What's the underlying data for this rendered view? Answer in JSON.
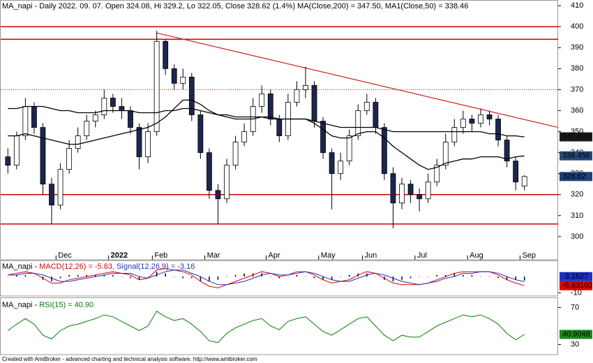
{
  "chart_data": [
    {
      "type": "candlestick",
      "title": "MA_napi - Daily 2022. 09. 07. Open 324.08, Hi 329.2, Lo 322.05, Close 328.62 (1.4%) MA(Close,200) = 347.50, MA1(Close,50) = 338.46",
      "categories": [
        null,
        null,
        null,
        null,
        null,
        null,
        "Dec",
        null,
        null,
        null,
        null,
        null,
        "2022",
        null,
        null,
        null,
        null,
        "Feb",
        null,
        null,
        null,
        null,
        null,
        "Mar",
        null,
        null,
        null,
        null,
        null,
        null,
        "Apr",
        null,
        null,
        null,
        null,
        null,
        "May",
        null,
        null,
        null,
        null,
        "Jun",
        null,
        null,
        null,
        null,
        null,
        "Jul",
        null,
        null,
        null,
        null,
        null,
        "Aug",
        null,
        null,
        null,
        null,
        null,
        "Sep"
      ],
      "bold_category": "2022",
      "open": [
        338,
        334,
        348,
        362,
        352,
        325,
        315,
        332,
        342,
        348,
        355,
        358,
        366,
        362,
        360,
        352,
        338,
        350,
        393,
        380,
        373,
        376,
        358,
        340,
        322,
        318,
        334,
        345,
        350,
        362,
        368,
        356,
        348,
        364,
        370,
        372,
        355,
        340,
        330,
        336,
        348,
        360,
        364,
        352,
        330,
        316,
        325,
        320,
        318,
        326,
        334,
        345,
        352,
        356,
        354,
        358,
        356,
        346,
        336,
        324.08
      ],
      "high": [
        342,
        350,
        366,
        364,
        354,
        328,
        335,
        346,
        352,
        358,
        360,
        370,
        368,
        366,
        362,
        354,
        354,
        398,
        394,
        382,
        380,
        378,
        360,
        342,
        325,
        337,
        348,
        354,
        366,
        372,
        370,
        358,
        368,
        374,
        381,
        374,
        357,
        342,
        340,
        351,
        363,
        368,
        366,
        354,
        333,
        328,
        327,
        323,
        330,
        337,
        349,
        356,
        360,
        358,
        361,
        360,
        358,
        348,
        338,
        329.2
      ],
      "low": [
        330,
        332,
        346,
        349,
        320,
        306,
        313,
        330,
        340,
        346,
        352,
        356,
        359,
        356,
        349,
        332,
        335,
        348,
        377,
        370,
        370,
        355,
        337,
        318,
        306,
        316,
        332,
        343,
        348,
        359,
        353,
        345,
        346,
        362,
        366,
        352,
        337,
        313,
        327,
        334,
        346,
        358,
        349,
        327,
        304,
        313,
        316,
        312,
        316,
        324,
        332,
        343,
        349,
        350,
        352,
        353,
        343,
        333,
        322,
        322.05
      ],
      "close": [
        334,
        348,
        362,
        352,
        325,
        315,
        332,
        342,
        348,
        355,
        358,
        366,
        362,
        360,
        352,
        338,
        350,
        393,
        380,
        373,
        376,
        358,
        340,
        322,
        318,
        334,
        345,
        350,
        362,
        368,
        356,
        348,
        364,
        370,
        372,
        355,
        340,
        330,
        336,
        348,
        360,
        364,
        352,
        330,
        316,
        325,
        320,
        318,
        326,
        334,
        345,
        352,
        356,
        354,
        358,
        356,
        346,
        336,
        326,
        328.62
      ],
      "up_color": "#ffffff",
      "down_color": "#1c2650",
      "close_box_color": "#1f3f77",
      "series": [
        {
          "color": "#000000",
          "box_color": "#1a1a1a",
          "last_value": 347.503,
          "values": [
            361,
            361,
            362,
            362,
            362,
            361,
            360,
            360,
            359,
            359,
            359,
            360,
            360,
            360,
            360,
            359,
            359,
            359,
            360,
            360,
            361,
            361,
            360,
            359,
            358,
            358,
            357,
            357,
            357,
            357,
            356,
            356,
            356,
            356,
            356,
            355,
            354,
            353,
            352,
            352,
            352,
            352,
            352,
            351,
            350,
            350,
            350,
            350,
            350,
            350,
            350,
            350,
            350,
            350,
            350,
            349,
            349,
            348,
            348,
            347.5
          ]
        },
        {
          "color": "#000000",
          "box_color": "#2a4878",
          "last_value": 338.456,
          "values": [
            348,
            348,
            349,
            348,
            347,
            346,
            345,
            344,
            344,
            345,
            346,
            347,
            348,
            349,
            350,
            351,
            352,
            354,
            357,
            361,
            365,
            365,
            363,
            360,
            358,
            357,
            356,
            356,
            356,
            357,
            357,
            356,
            356,
            356,
            356,
            354,
            351,
            348,
            347,
            347,
            349,
            350,
            350,
            347,
            343,
            340,
            337,
            334,
            332,
            333,
            335,
            336,
            337,
            337,
            338,
            338,
            338,
            337,
            338,
            338.46
          ]
        }
      ],
      "levels": [
        400,
        394,
        320,
        306
      ],
      "dotted_levels": [
        370
      ],
      "level_color": "#d00000",
      "trendline": [
        397,
        352
      ],
      "trendline_color": "#d02020",
      "ylim": [
        289,
        412.7
      ],
      "yticks": [
        300,
        310,
        320,
        330,
        340,
        350,
        360,
        370,
        380,
        390,
        400,
        410
      ]
    },
    {
      "type": "line",
      "title": "MA_napi - ",
      "series": [
        {
          "label": "MACD(12,26) = -5.63",
          "color": "#e00000",
          "last_value": -5.63102,
          "values": [
            1,
            2,
            3,
            2,
            -1,
            -4,
            -4,
            -2,
            -1,
            0,
            1,
            2,
            3,
            2,
            1,
            -2,
            -1,
            4,
            5,
            4,
            3,
            1,
            -3,
            -6,
            -7,
            -5,
            -3,
            -1,
            1,
            3,
            2,
            0,
            1,
            3,
            3,
            1,
            -2,
            -4,
            -3,
            -2,
            1,
            3,
            2,
            -1,
            -4,
            -5,
            -5,
            -5,
            -4,
            -2,
            0,
            2,
            3,
            3,
            3,
            3,
            1,
            -2,
            -4,
            -5.63
          ]
        },
        {
          "label": ", Signal(12,26,9) = -3.16",
          "color": "#2030c0",
          "last_value": -3.1627,
          "values": [
            1,
            1,
            2,
            2,
            1,
            -1,
            -3,
            -3,
            -2,
            -1,
            0,
            1,
            2,
            2,
            2,
            0,
            -1,
            1,
            3,
            4,
            4,
            2,
            0,
            -3,
            -5,
            -5,
            -4,
            -3,
            -1,
            1,
            2,
            1,
            1,
            2,
            3,
            2,
            0,
            -2,
            -3,
            -3,
            -1,
            1,
            2,
            1,
            -1,
            -3,
            -4,
            -5,
            -4,
            -3,
            -1,
            0,
            2,
            2,
            3,
            3,
            2,
            0,
            -2,
            -3.16
          ]
        }
      ],
      "histogram": [
        0,
        1,
        1,
        0,
        -2,
        -3,
        -1,
        1,
        1,
        1,
        1,
        1,
        1,
        0,
        -1,
        -2,
        0,
        3,
        2,
        0,
        -1,
        -1,
        -3,
        -3,
        -2,
        0,
        1,
        2,
        2,
        2,
        0,
        -1,
        0,
        1,
        0,
        -1,
        -2,
        -2,
        0,
        1,
        2,
        2,
        0,
        -2,
        -3,
        -2,
        -1,
        0,
        0,
        1,
        1,
        2,
        1,
        1,
        0,
        0,
        -1,
        -2,
        -2,
        -2.47
      ],
      "histogram_color": "#000000",
      "ylim": [
        -12,
        10
      ],
      "yticks": [
        -10
      ]
    },
    {
      "type": "line",
      "title": "MA_napi - ",
      "series": [
        {
          "label": "RSI(15) = 40.90",
          "color": "#008000",
          "box_color": "#1a8a1a",
          "last_value": 40.9048,
          "values": [
            45,
            52,
            58,
            52,
            40,
            36,
            45,
            50,
            52,
            55,
            58,
            62,
            60,
            55,
            50,
            45,
            50,
            66,
            60,
            56,
            58,
            52,
            44,
            34,
            32,
            42,
            48,
            52,
            56,
            58,
            50,
            46,
            55,
            58,
            60,
            52,
            44,
            40,
            46,
            52,
            58,
            60,
            50,
            40,
            34,
            40,
            38,
            38,
            44,
            50,
            54,
            58,
            62,
            60,
            62,
            58,
            52,
            42,
            35,
            40.9
          ]
        }
      ],
      "ylim": [
        19,
        81
      ],
      "yticks": [
        30,
        70
      ]
    }
  ],
  "footer": "Created with AmiBroker - advanced charting and technical analysis software. http://www.amibroker.com"
}
